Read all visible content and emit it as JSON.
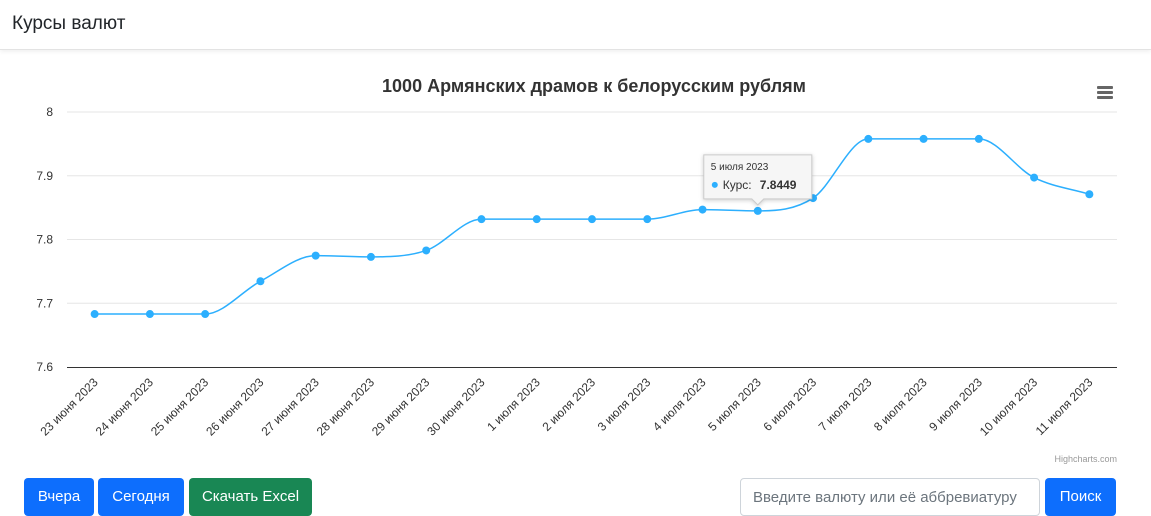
{
  "header": {
    "title": "Курсы валют"
  },
  "chart_data": {
    "type": "line",
    "title": "1000 Армянских драмов к белорусским рублям",
    "categories": [
      "23 июня 2023",
      "24 июня 2023",
      "25 июня 2023",
      "26 июня 2023",
      "27 июня 2023",
      "28 июня 2023",
      "29 июня 2023",
      "30 июня 2023",
      "1 июля 2023",
      "2 июля 2023",
      "3 июля 2023",
      "4 июля 2023",
      "5 июля 2023",
      "6 июля 2023",
      "7 июля 2023",
      "8 июля 2023",
      "9 июля 2023",
      "10 июля 2023",
      "11 июля 2023"
    ],
    "series": [
      {
        "name": "Курс",
        "values": [
          7.6831,
          7.6831,
          7.6831,
          7.7345,
          7.7747,
          7.7727,
          7.7828,
          7.8319,
          7.8319,
          7.8319,
          7.8319,
          7.8469,
          7.8449,
          7.865,
          7.9578,
          7.9578,
          7.9578,
          7.8971,
          7.871
        ]
      }
    ],
    "ylim": [
      7.6,
      8
    ],
    "yticks": [
      "7.6",
      "7.7",
      "7.8",
      "7.9",
      "8"
    ],
    "grid": true,
    "color": "#2caffe",
    "tooltip": {
      "date": "5 июля 2023",
      "label": "Курс:",
      "value": "7.8449"
    },
    "credits": "Highcharts.com"
  },
  "controls": {
    "yesterday_label": "Вчера",
    "today_label": "Сегодня",
    "excel_label": "Скачать Excel",
    "search_placeholder": "Введите валюту или её аббревиатуру",
    "search_label": "Поиск"
  }
}
